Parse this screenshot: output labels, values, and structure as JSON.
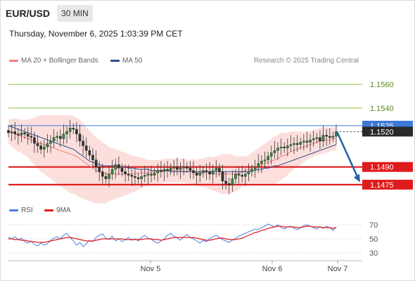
{
  "header": {
    "pair": "EUR/USD",
    "timeframe": "30 MIN"
  },
  "timestamp": "Thursday, November 6, 2025 1:03:39 PM CET",
  "legend": {
    "ma20": {
      "label": "MA 20 + Bollinger Bands",
      "color": "#f08080"
    },
    "ma50": {
      "label": "MA 50",
      "color": "#2b4f91"
    }
  },
  "credit": "Research © 2025 Trading Central",
  "rsi_legend": {
    "rsi": {
      "label": "RSI",
      "color": "#4f7fe0"
    },
    "ma9": {
      "label": "9MA",
      "color": "#e01b1b"
    }
  },
  "chart_data": [
    {
      "type": "candlestick",
      "y_range": [
        1.1463,
        1.1575
      ],
      "x_labels": [
        "Nov 5",
        "Nov 6",
        "Nov 7"
      ],
      "grid": false,
      "levels": [
        {
          "value": 1.156,
          "label": "1.1560",
          "kind": "target",
          "color": "#8cc63f"
        },
        {
          "value": 1.154,
          "label": "1.1540",
          "kind": "target",
          "color": "#8cc63f"
        },
        {
          "value": 1.1525,
          "label": "1.1525",
          "kind": "pivot",
          "color": "#3c78d8"
        },
        {
          "value": 1.152,
          "label": "1.1520",
          "kind": "last",
          "color": "#333333"
        },
        {
          "value": 1.149,
          "label": "1.1490",
          "kind": "support",
          "color": "#e01b1b"
        },
        {
          "value": 1.1475,
          "label": "1.1475",
          "kind": "support",
          "color": "#e01b1b"
        }
      ],
      "forecast_arrow": {
        "from": 1.152,
        "to": 1.1477,
        "direction": "down",
        "color": "#2a5fa8"
      },
      "close_series": [
        1.1519,
        1.152,
        1.1518,
        1.1517,
        1.1519,
        1.1518,
        1.1516,
        1.1515,
        1.151,
        1.1508,
        1.1505,
        1.1507,
        1.151,
        1.1512,
        1.1515,
        1.1516,
        1.1514,
        1.1518,
        1.152,
        1.1523,
        1.1522,
        1.1518,
        1.1512,
        1.1508,
        1.1504,
        1.15,
        1.1496,
        1.149,
        1.1486,
        1.1482,
        1.148,
        1.1484,
        1.1488,
        1.1492,
        1.1489,
        1.1486,
        1.1484,
        1.1483,
        1.1482,
        1.1481,
        1.148,
        1.1482,
        1.1483,
        1.1484,
        1.1483,
        1.1485,
        1.1487,
        1.1486,
        1.1488,
        1.1487,
        1.1489,
        1.149,
        1.1488,
        1.1489,
        1.149,
        1.1489,
        1.1487,
        1.1485,
        1.1483,
        1.1485,
        1.1487,
        1.1486,
        1.1484,
        1.1487,
        1.1489,
        1.1486,
        1.1478,
        1.1476,
        1.1475,
        1.148,
        1.1484,
        1.1483,
        1.1482,
        1.1484,
        1.1486,
        1.1488,
        1.149,
        1.1493,
        1.1495,
        1.1496,
        1.1499,
        1.1502,
        1.1504,
        1.1506,
        1.1507,
        1.1506,
        1.1508,
        1.1509,
        1.151,
        1.1509,
        1.1511,
        1.1512,
        1.1511,
        1.1513,
        1.1514,
        1.1515,
        1.1512,
        1.1517,
        1.1516,
        1.1515,
        1.1516,
        1.152
      ],
      "ma20_series": [
        1.152,
        1.1519,
        1.1518,
        1.1517,
        1.1516,
        1.1515,
        1.1514,
        1.1513,
        1.1512,
        1.1511,
        1.151,
        1.1509,
        1.1508,
        1.1507,
        1.1506,
        1.1505,
        1.1504,
        1.1503,
        1.1502,
        1.1501,
        1.15,
        1.1499,
        1.1497,
        1.1495,
        1.1493,
        1.1491,
        1.1489,
        1.1487,
        1.1486,
        1.1485,
        1.1484,
        1.1484,
        1.1484,
        1.1484,
        1.1484,
        1.1484,
        1.1484,
        1.1484,
        1.1484,
        1.1484,
        1.1485,
        1.1485,
        1.1485,
        1.1485,
        1.1486,
        1.1486,
        1.1486,
        1.1486,
        1.1487,
        1.1487,
        1.1487,
        1.1487,
        1.1487,
        1.1487,
        1.1487,
        1.1486,
        1.1486,
        1.1486,
        1.1485,
        1.1485,
        1.1485,
        1.1485,
        1.1485,
        1.1484,
        1.1484,
        1.1484,
        1.1484,
        1.1484,
        1.1484,
        1.1484,
        1.1484,
        1.1485,
        1.1486,
        1.1487,
        1.1488,
        1.1489,
        1.149,
        1.1491,
        1.1492,
        1.1493,
        1.1494,
        1.1495,
        1.1496,
        1.1497,
        1.1499,
        1.15,
        1.1501,
        1.1503,
        1.1504,
        1.1505,
        1.1506,
        1.1507,
        1.1508,
        1.1509,
        1.151,
        1.1511,
        1.1512,
        1.1512,
        1.1513,
        1.1513,
        1.1514,
        1.1514
      ],
      "bb_width_series": [
        1.0,
        1.2,
        1.3,
        1.4,
        1.4,
        1.5,
        1.6,
        1.8,
        2.0,
        2.2,
        2.4,
        2.5,
        2.6,
        2.7,
        2.8,
        2.9,
        3.0,
        3.1,
        3.2,
        3.3,
        3.3,
        3.3,
        3.3,
        3.2,
        3.1,
        3.0,
        2.9,
        2.8,
        2.7,
        2.6,
        2.5,
        2.3,
        2.2,
        2.1,
        2.0,
        1.9,
        1.8,
        1.7,
        1.6,
        1.5,
        1.4,
        1.3,
        1.2,
        1.1,
        1.0,
        1.0,
        1.0,
        1.0,
        1.0,
        1.0,
        1.0,
        1.0,
        1.0,
        1.0,
        1.0,
        1.0,
        1.0,
        1.1,
        1.1,
        1.2,
        1.2,
        1.3,
        1.4,
        1.4,
        1.5,
        1.6,
        1.7,
        1.7,
        1.7,
        1.6,
        1.5,
        1.4,
        1.3,
        1.2,
        1.2,
        1.3,
        1.4,
        1.5,
        1.6,
        1.7,
        1.8,
        1.9,
        2.0,
        2.0,
        2.0,
        1.9,
        1.8,
        1.7,
        1.6,
        1.5,
        1.4,
        1.3,
        1.2,
        1.2,
        1.1,
        1.1,
        1.1,
        1.1,
        1.1,
        1.0,
        1.0,
        1.0
      ],
      "ma50_series": [
        1.1525,
        1.1524,
        1.1523,
        1.1522,
        1.1521,
        1.152,
        1.1519,
        1.1518,
        1.1517,
        1.1516,
        1.1515,
        1.1514,
        1.1513,
        1.1512,
        1.1511,
        1.151,
        1.1509,
        1.1508,
        1.1507,
        1.1506,
        1.1505,
        1.1503,
        1.1501,
        1.1499,
        1.1497,
        1.1495,
        1.1494,
        1.1493,
        1.1492,
        1.1491,
        1.1491,
        1.1491,
        1.1491,
        1.1491,
        1.149,
        1.149,
        1.149,
        1.1489,
        1.1489,
        1.1489,
        1.1488,
        1.1488,
        1.1488,
        1.1488,
        1.1487,
        1.1487,
        1.1487,
        1.1487,
        1.1487,
        1.1487,
        1.1486,
        1.1486,
        1.1486,
        1.1486,
        1.1486,
        1.1486,
        1.1486,
        1.1486,
        1.1486,
        1.1486,
        1.1486,
        1.1486,
        1.1486,
        1.1486,
        1.1486,
        1.1486,
        1.1486,
        1.1486,
        1.1486,
        1.1486,
        1.1486,
        1.1486,
        1.1486,
        1.1486,
        1.1486,
        1.1487,
        1.1487,
        1.1488,
        1.1488,
        1.1489,
        1.1489,
        1.149,
        1.1491,
        1.1491,
        1.1492,
        1.1493,
        1.1494,
        1.1495,
        1.1496,
        1.1497,
        1.1498,
        1.1499,
        1.15,
        1.1501,
        1.1502,
        1.1503,
        1.1504,
        1.1505,
        1.1506,
        1.1507,
        1.1508,
        1.1509
      ]
    },
    {
      "type": "line",
      "name": "RSI",
      "y_range": [
        22,
        78
      ],
      "y_ticks": [
        70,
        50,
        30
      ],
      "rsi_series": [
        52,
        50,
        53,
        49,
        51,
        46,
        44,
        47,
        42,
        40,
        44,
        41,
        43,
        48,
        51,
        53,
        50,
        55,
        58,
        52,
        47,
        41,
        45,
        39,
        43,
        48,
        46,
        52,
        55,
        57,
        51,
        49,
        54,
        47,
        50,
        46,
        49,
        52,
        48,
        50,
        47,
        52,
        55,
        51,
        49,
        46,
        44,
        47,
        50,
        55,
        58,
        54,
        51,
        48,
        53,
        56,
        52,
        50,
        47,
        44,
        48,
        46,
        50,
        53,
        55,
        52,
        49,
        47,
        45,
        48,
        51,
        54,
        56,
        58,
        60,
        62,
        64,
        63,
        66,
        68,
        71,
        69,
        67,
        70,
        66,
        64,
        67,
        68,
        65,
        63,
        66,
        69,
        70,
        68,
        66,
        64,
        67,
        65,
        68,
        66,
        62,
        67
      ],
      "ma9_series": [
        50,
        50,
        49,
        49,
        48,
        48,
        47,
        46,
        46,
        45,
        45,
        45,
        46,
        47,
        48,
        49,
        50,
        51,
        52,
        52,
        51,
        50,
        49,
        48,
        47,
        47,
        47,
        48,
        49,
        50,
        50,
        50,
        50,
        50,
        50,
        50,
        49,
        49,
        49,
        49,
        49,
        49,
        50,
        50,
        50,
        49,
        49,
        48,
        49,
        50,
        51,
        52,
        52,
        52,
        52,
        52,
        52,
        52,
        51,
        50,
        49,
        48,
        48,
        49,
        50,
        51,
        51,
        50,
        49,
        49,
        49,
        50,
        51,
        53,
        55,
        57,
        59,
        60,
        62,
        63,
        65,
        66,
        67,
        68,
        68,
        67,
        67,
        67,
        67,
        66,
        66,
        67,
        68,
        68,
        67,
        67,
        67,
        66,
        66,
        66,
        65,
        66
      ]
    }
  ]
}
